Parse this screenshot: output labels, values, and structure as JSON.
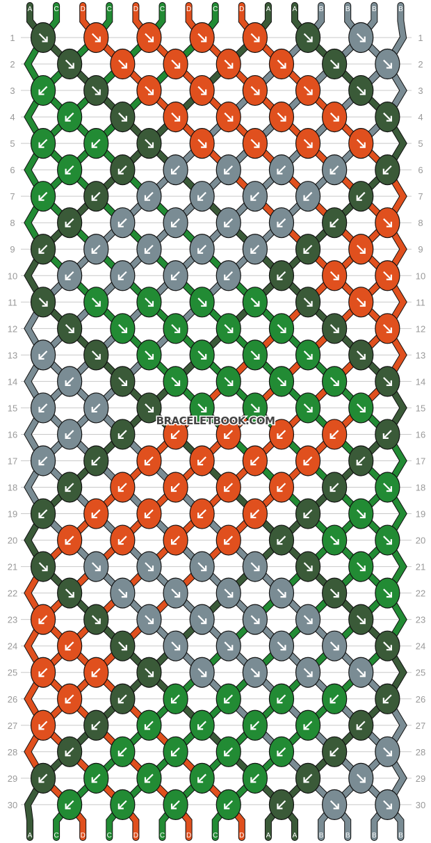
{
  "watermark": "BRACELETBOOK.COM",
  "colors": {
    "A": "#3a5a38",
    "B": "#7a8c94",
    "C": "#228b34",
    "D": "#e0501e"
  },
  "strings_top": [
    "A",
    "C",
    "D",
    "C",
    "D",
    "C",
    "D",
    "C",
    "D",
    "A",
    "A",
    "B",
    "B",
    "B",
    "B"
  ],
  "strings_bottom": [
    "A",
    "C",
    "D",
    "C",
    "D",
    "C",
    "D",
    "C",
    "D",
    "A",
    "A",
    "B",
    "B",
    "B",
    "B"
  ],
  "rows": [
    {
      "num": "1",
      "knots": [
        "A↘",
        "D↘",
        "D↘",
        "D↘",
        "D↘",
        "A↘",
        "B↘"
      ]
    },
    {
      "num": "2",
      "knots": [
        "A↘",
        "D↘",
        "D↘",
        "D↘",
        "D↘",
        "A↘",
        "B↘"
      ]
    },
    {
      "num": "3",
      "knots": [
        "C↙",
        "A↘",
        "D↘",
        "D↘",
        "D↘",
        "D↘",
        "A↘"
      ]
    },
    {
      "num": "4",
      "knots": [
        "C↙",
        "A↘",
        "D↘",
        "D↘",
        "D↘",
        "D↘",
        "A↘"
      ]
    },
    {
      "num": "5",
      "knots": [
        "C↙",
        "C↙",
        "A↘",
        "D↘",
        "D↘",
        "D↘",
        "D↘"
      ]
    },
    {
      "num": "6",
      "knots": [
        "C↙",
        "A↙",
        "B↙",
        "B↙",
        "B↙",
        "B↙",
        "A↙"
      ]
    },
    {
      "num": "7",
      "knots": [
        "C↙",
        "A↙",
        "B↙",
        "B↙",
        "B↙",
        "B↙",
        "A↙"
      ]
    },
    {
      "num": "8",
      "knots": [
        "A↙",
        "B↙",
        "B↙",
        "B↙",
        "B↙",
        "A↙",
        "D↘"
      ]
    },
    {
      "num": "9",
      "knots": [
        "A↙",
        "B↙",
        "B↙",
        "B↙",
        "B↙",
        "A↙",
        "D↘"
      ]
    },
    {
      "num": "10",
      "knots": [
        "B↙",
        "B↙",
        "B↙",
        "B↙",
        "A↙",
        "D↘",
        "D↘"
      ]
    },
    {
      "num": "11",
      "knots": [
        "A↘",
        "C↘",
        "C↘",
        "C↘",
        "C↘",
        "A↘",
        "D↘"
      ]
    },
    {
      "num": "12",
      "knots": [
        "A↘",
        "C↘",
        "C↘",
        "C↘",
        "C↘",
        "A↘",
        "D↘"
      ]
    },
    {
      "num": "13",
      "knots": [
        "B↙",
        "A↘",
        "C↘",
        "C↘",
        "C↘",
        "C↘",
        "A↘"
      ]
    },
    {
      "num": "14",
      "knots": [
        "B↙",
        "A↘",
        "C↘",
        "C↘",
        "C↘",
        "C↘",
        "A↘"
      ]
    },
    {
      "num": "15",
      "knots": [
        "B↙",
        "B↙",
        "A↘",
        "C↘",
        "C↘",
        "C↘",
        "C↘"
      ]
    },
    {
      "num": "16",
      "knots": [
        "B↙",
        "A↙",
        "D↙",
        "D↙",
        "D↙",
        "D↙",
        "A↙"
      ]
    },
    {
      "num": "17",
      "knots": [
        "B↙",
        "A↙",
        "D↙",
        "D↙",
        "D↙",
        "D↙",
        "A↙"
      ]
    },
    {
      "num": "18",
      "knots": [
        "A↙",
        "D↙",
        "D↙",
        "D↙",
        "D↙",
        "A↙",
        "C↘"
      ]
    },
    {
      "num": "19",
      "knots": [
        "A↙",
        "D↙",
        "D↙",
        "D↙",
        "D↙",
        "A↙",
        "C↘"
      ]
    },
    {
      "num": "20",
      "knots": [
        "D↙",
        "D↙",
        "D↙",
        "D↙",
        "A↙",
        "C↘",
        "C↘"
      ]
    },
    {
      "num": "21",
      "knots": [
        "A↘",
        "B↘",
        "B↘",
        "B↘",
        "B↘",
        "A↘",
        "C↘"
      ]
    },
    {
      "num": "22",
      "knots": [
        "A↘",
        "B↘",
        "B↘",
        "B↘",
        "B↘",
        "A↘",
        "C↘"
      ]
    },
    {
      "num": "23",
      "knots": [
        "D↙",
        "A↘",
        "B↘",
        "B↘",
        "B↘",
        "B↘",
        "A↘"
      ]
    },
    {
      "num": "24",
      "knots": [
        "D↙",
        "A↘",
        "B↘",
        "B↘",
        "B↘",
        "B↘",
        "A↘"
      ]
    },
    {
      "num": "25",
      "knots": [
        "D↙",
        "D↙",
        "A↘",
        "B↘",
        "B↘",
        "B↘",
        "B↘"
      ]
    },
    {
      "num": "26",
      "knots": [
        "D↙",
        "A↙",
        "C↙",
        "C↙",
        "C↙",
        "C↙",
        "A↙"
      ]
    },
    {
      "num": "27",
      "knots": [
        "D↙",
        "A↙",
        "C↙",
        "C↙",
        "C↙",
        "C↙",
        "A↙"
      ]
    },
    {
      "num": "28",
      "knots": [
        "A↙",
        "C↙",
        "C↙",
        "C↙",
        "C↙",
        "A↙",
        "B↘"
      ]
    },
    {
      "num": "29",
      "knots": [
        "A↙",
        "C↙",
        "C↙",
        "C↙",
        "C↙",
        "A↙",
        "B↘"
      ]
    },
    {
      "num": "30",
      "knots": [
        "C↙",
        "C↙",
        "C↙",
        "C↙",
        "A↙",
        "B↘",
        "B↘"
      ]
    }
  ]
}
